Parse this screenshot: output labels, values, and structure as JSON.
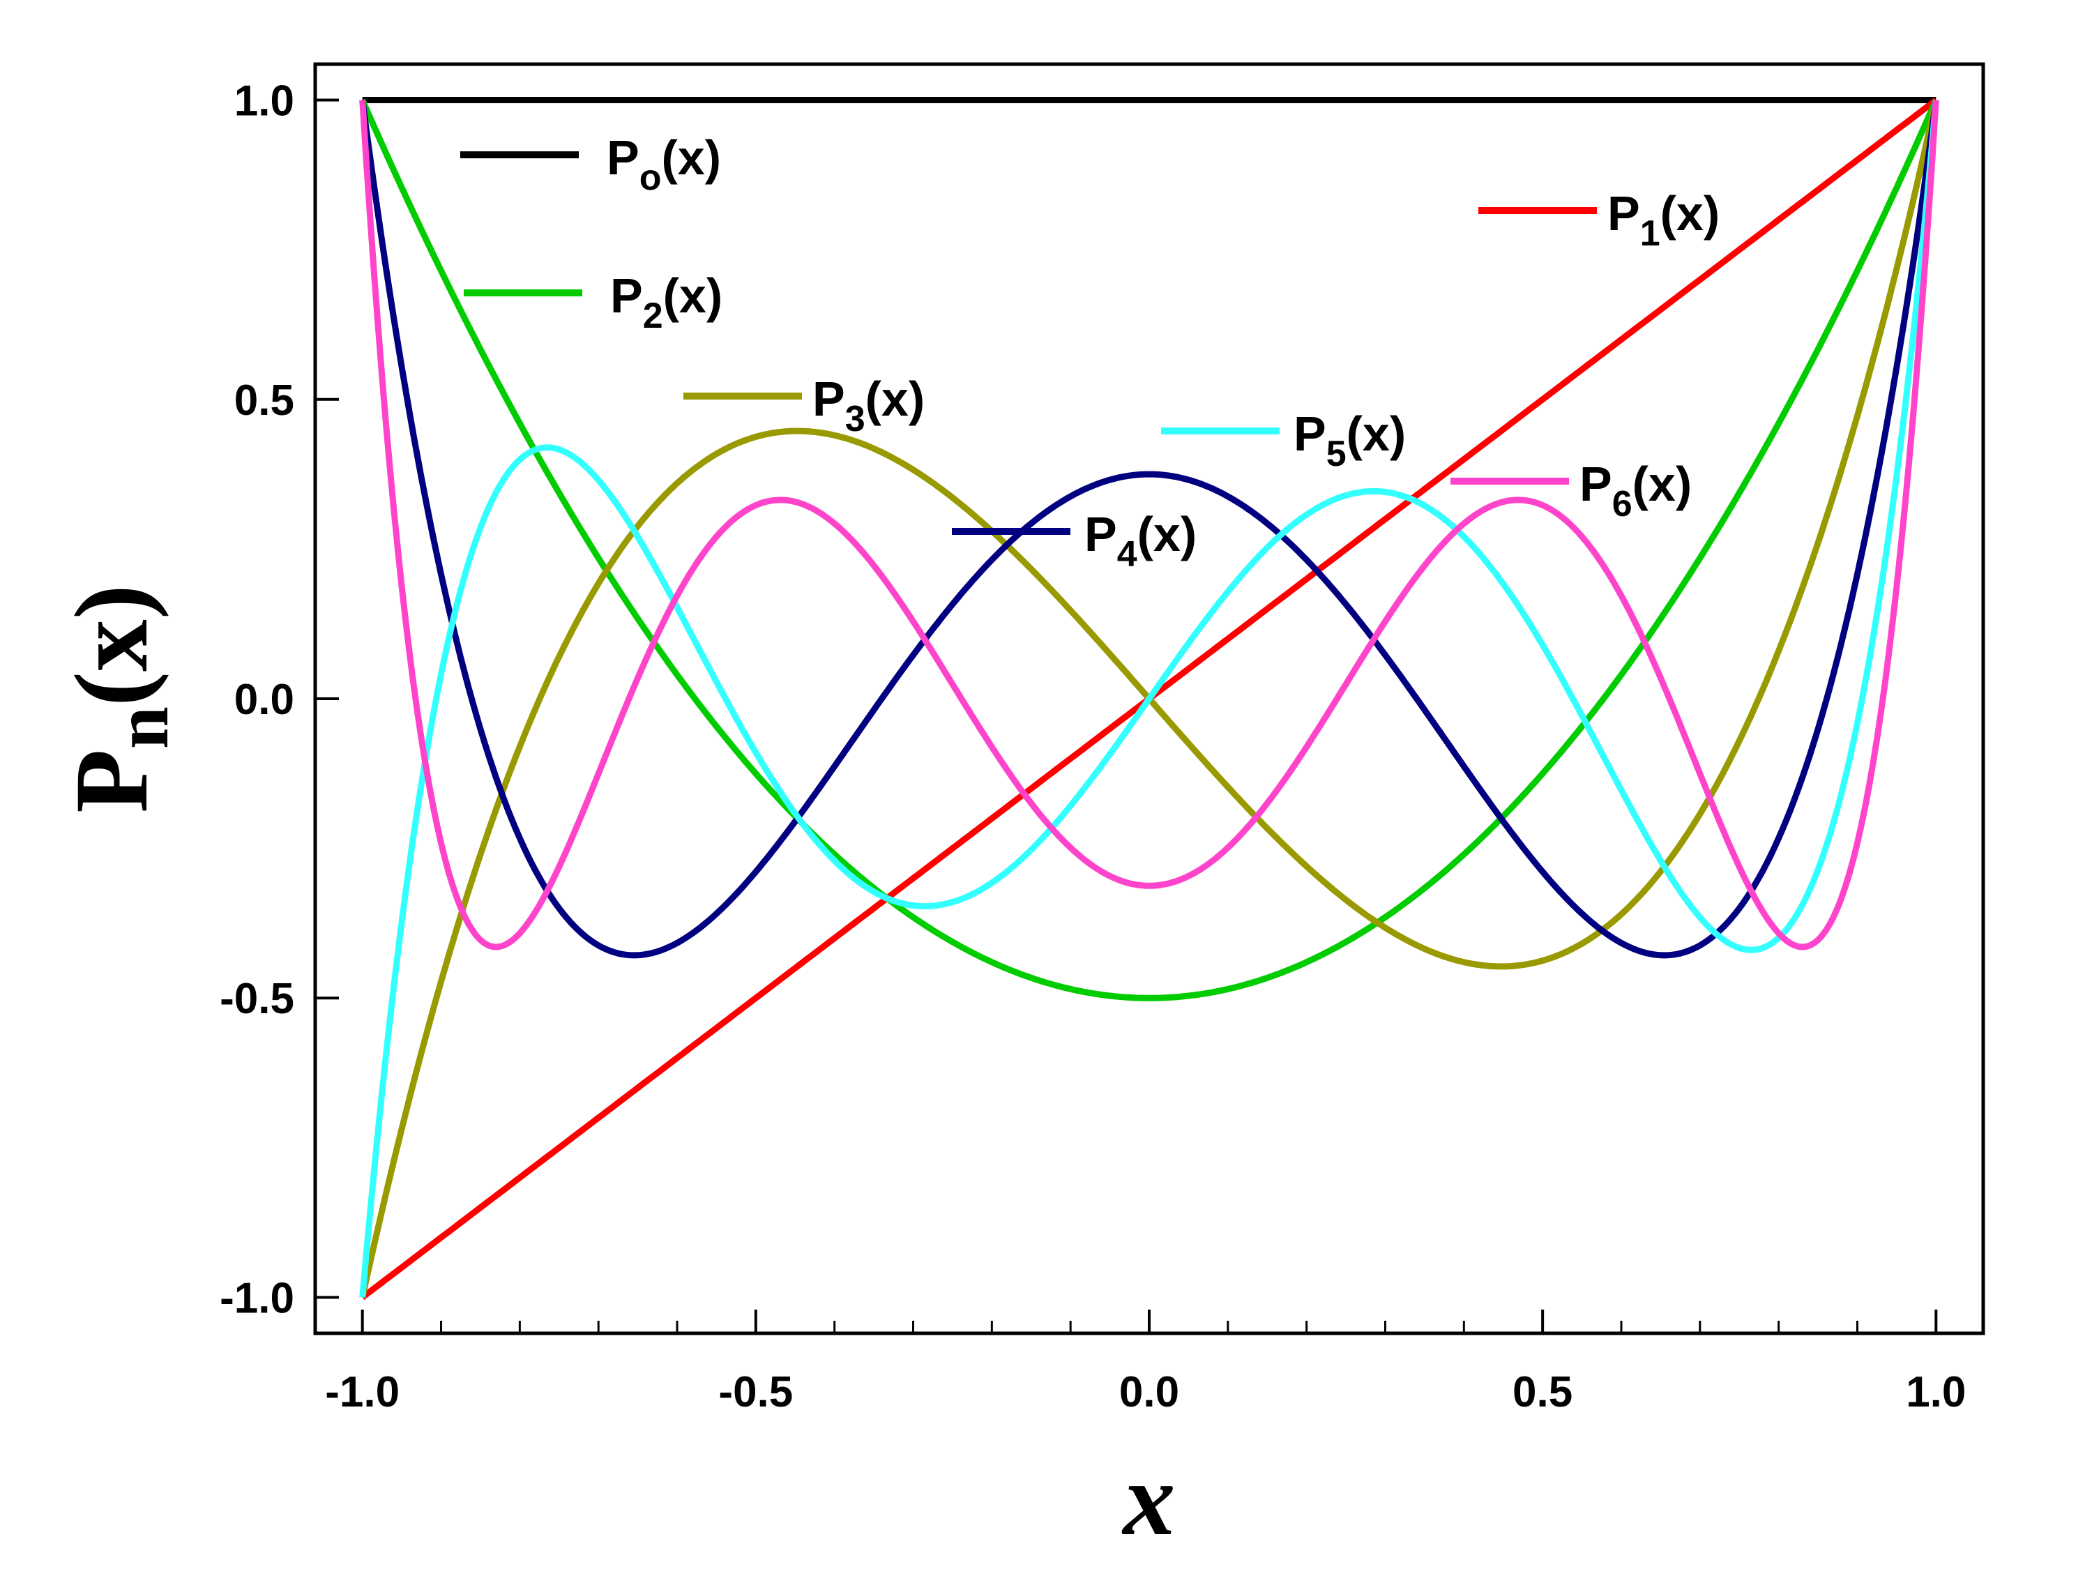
{
  "chart_data": {
    "type": "line",
    "title": "",
    "xlabel": "x",
    "ylabel": "P_n(x)",
    "xlim": [
      -1.06,
      1.06
    ],
    "ylim": [
      -1.06,
      1.06
    ],
    "grid": false,
    "legend_placement": "inline",
    "x_ticks": [
      {
        "value": -1.0,
        "label": "-1.0"
      },
      {
        "value": -0.5,
        "label": "-0.5"
      },
      {
        "value": 0.0,
        "label": "0.0"
      },
      {
        "value": 0.5,
        "label": "0.5"
      },
      {
        "value": 1.0,
        "label": "1.0"
      }
    ],
    "y_ticks": [
      {
        "value": 1.0,
        "label": "1.0"
      },
      {
        "value": 0.5,
        "label": "0.5"
      },
      {
        "value": 0.0,
        "label": "0.0"
      },
      {
        "value": -0.5,
        "label": "-0.5"
      },
      {
        "value": -1.0,
        "label": "-1.0"
      }
    ],
    "x": [
      -1.0,
      -0.95,
      -0.9,
      -0.85,
      -0.8,
      -0.75,
      -0.7,
      -0.65,
      -0.6,
      -0.55,
      -0.5,
      -0.45,
      -0.4,
      -0.35,
      -0.3,
      -0.25,
      -0.2,
      -0.15,
      -0.1,
      -0.05,
      0.0,
      0.05,
      0.1,
      0.15,
      0.2,
      0.25,
      0.3,
      0.35,
      0.4,
      0.45,
      0.5,
      0.55,
      0.6,
      0.65,
      0.7,
      0.75,
      0.8,
      0.85,
      0.9,
      0.95,
      1.0
    ],
    "series": [
      {
        "name": "P",
        "sub": "o",
        "color": "#000000",
        "values": [
          1,
          1,
          1,
          1,
          1,
          1,
          1,
          1,
          1,
          1,
          1,
          1,
          1,
          1,
          1,
          1,
          1,
          1,
          1,
          1,
          1,
          1,
          1,
          1,
          1,
          1,
          1,
          1,
          1,
          1,
          1,
          1,
          1,
          1,
          1,
          1,
          1,
          1,
          1,
          1,
          1
        ]
      },
      {
        "name": "P",
        "sub": "1",
        "color": "#ff0000",
        "values": [
          -1.0,
          -0.95,
          -0.9,
          -0.85,
          -0.8,
          -0.75,
          -0.7,
          -0.65,
          -0.6,
          -0.55,
          -0.5,
          -0.45,
          -0.4,
          -0.35,
          -0.3,
          -0.25,
          -0.2,
          -0.15,
          -0.1,
          -0.05,
          0.0,
          0.05,
          0.1,
          0.15,
          0.2,
          0.25,
          0.3,
          0.35,
          0.4,
          0.45,
          0.5,
          0.55,
          0.6,
          0.65,
          0.7,
          0.75,
          0.8,
          0.85,
          0.9,
          0.95,
          1.0
        ]
      },
      {
        "name": "P",
        "sub": "2",
        "color": "#00cc00",
        "values": [
          1.0,
          0.854,
          0.715,
          0.584,
          0.46,
          0.344,
          0.235,
          0.134,
          0.04,
          -0.046,
          -0.125,
          -0.196,
          -0.26,
          -0.316,
          -0.365,
          -0.406,
          -0.44,
          -0.466,
          -0.485,
          -0.496,
          -0.5,
          -0.496,
          -0.485,
          -0.466,
          -0.44,
          -0.406,
          -0.365,
          -0.316,
          -0.26,
          -0.196,
          -0.125,
          -0.046,
          0.04,
          0.134,
          0.235,
          0.344,
          0.46,
          0.584,
          0.715,
          0.854,
          1.0
        ]
      },
      {
        "name": "P",
        "sub": "3",
        "color": "#999900",
        "values": [
          -1.0,
          -0.668,
          -0.373,
          -0.114,
          0.08,
          0.258,
          0.382,
          0.476,
          0.48,
          0.427,
          0.4375,
          0.408,
          0.44,
          0.3876,
          0.3825,
          0.3359,
          0.28,
          0.2156,
          0.1475,
          0.0747,
          0.0,
          -0.0747,
          -0.1475,
          -0.2156,
          -0.28,
          -0.3359,
          -0.3825,
          -0.4126,
          -0.44,
          -0.4464,
          -0.4375,
          -0.4098,
          -0.36,
          -0.2854,
          -0.1925,
          -0.0703,
          0.08,
          0.2631,
          0.4725,
          0.7218,
          1.0
        ]
      },
      {
        "name": "P",
        "sub": "4",
        "color": "#000080",
        "values": [
          1.0,
          0.5541,
          0.2079,
          -0.0478,
          -0.233,
          -0.3479,
          -0.4121,
          -0.4276,
          -0.408,
          -0.3622,
          -0.2891,
          -0.2036,
          -0.113,
          -0.0183,
          0.0729,
          0.1577,
          0.232,
          0.2938,
          0.3379,
          0.3657,
          0.375,
          0.3657,
          0.3379,
          0.2938,
          0.232,
          0.1577,
          0.0729,
          -0.0183,
          -0.113,
          -0.2036,
          -0.2891,
          -0.3622,
          -0.408,
          -0.4276,
          -0.4121,
          -0.3479,
          -0.233,
          -0.0478,
          0.2079,
          0.5541,
          1.0
        ]
      },
      {
        "name": "P",
        "sub": "5",
        "color": "#33ffff",
        "values": [
          -1.0,
          -0.2631,
          0.1754,
          0.3812,
          0.3995,
          0.321,
          0.1941,
          0.0517,
          -0.0896,
          -0.2023,
          -0.2891,
          -0.3305,
          -0.3344,
          -0.3086,
          -0.2614,
          -0.2087,
          -0.1376,
          -0.0744,
          -0.0241,
          0.0059,
          0.0,
          -0.0059,
          0.0241,
          0.0744,
          0.1376,
          0.2087,
          0.2614,
          0.3086,
          0.3344,
          0.3305,
          0.2891,
          0.2023,
          0.0896,
          -0.0517,
          -0.1941,
          -0.321,
          -0.3995,
          -0.3812,
          -0.1754,
          0.2631,
          1.0
        ]
      },
      {
        "name": "P",
        "sub": "6",
        "color": "#ff44cc",
        "values": [
          1.0,
          0.0,
          -0.282,
          -0.4,
          -0.2,
          0.0,
          0.2,
          0.31,
          0.32,
          0.25,
          0.1,
          -0.05,
          -0.19,
          -0.28,
          -0.31,
          -0.3,
          -0.24,
          -0.16,
          -0.08,
          -0.02,
          -0.3125,
          -0.02,
          -0.08,
          -0.16,
          -0.24,
          -0.3,
          -0.31,
          -0.28,
          -0.19,
          -0.05,
          0.1,
          0.25,
          0.32,
          0.31,
          0.2,
          0.0,
          -0.2,
          -0.4,
          -0.282,
          0.0,
          1.0
        ]
      }
    ]
  }
}
